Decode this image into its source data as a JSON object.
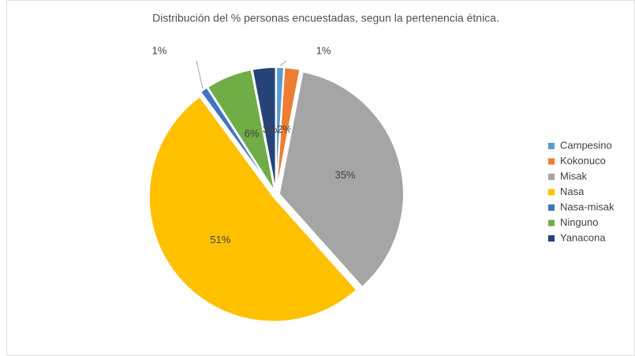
{
  "chart_data": {
    "type": "pie",
    "title": "Distribución del % personas encuestadas, segun la pertenencia étnica.",
    "categories": [
      "Campesino",
      "Kokonuco",
      "Misak",
      "Nasa",
      "Nasa-misak",
      "Ninguno",
      "Yanacona"
    ],
    "values": [
      1,
      2,
      35,
      51,
      1,
      6,
      3
    ],
    "value_labels": [
      "1%",
      "2%",
      "35%",
      "51%",
      "1%",
      "6%",
      "3%"
    ],
    "colors": [
      "#5b9bd5",
      "#ed7d31",
      "#a5a5a5",
      "#ffc000",
      "#4472c4",
      "#70ad47",
      "#264478"
    ],
    "legend": "right"
  }
}
